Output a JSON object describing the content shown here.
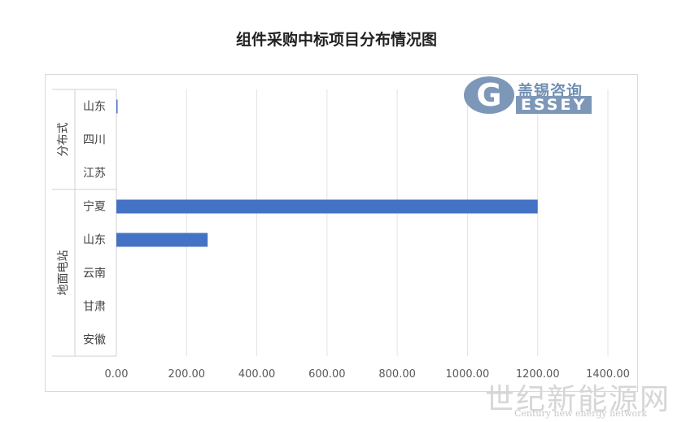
{
  "title": "组件采购中标项目分布情况图",
  "logo": {
    "cn": "盖锡咨询",
    "en": "ESSEY",
    "g": "G"
  },
  "watermark": {
    "cn": "世纪新能源网",
    "en": "Century new energy network"
  },
  "chart_data": {
    "type": "bar",
    "orientation": "horizontal",
    "groups": [
      {
        "name": "分布式",
        "categories": [
          "山东",
          "四川",
          "江苏"
        ]
      },
      {
        "name": "地面电站",
        "categories": [
          "宁夏",
          "山东",
          "云南",
          "甘肃",
          "安徽"
        ]
      }
    ],
    "categories": [
      "山东",
      "四川",
      "江苏",
      "宁夏",
      "山东",
      "云南",
      "甘肃",
      "安徽"
    ],
    "values": [
      2,
      0,
      0,
      1200,
      260,
      0,
      0,
      0
    ],
    "xticks": [
      "0.00",
      "200.00",
      "400.00",
      "600.00",
      "800.00",
      "1000.00",
      "1200.00",
      "1400.00"
    ],
    "xlim": [
      0,
      1400
    ],
    "grid": true,
    "bar_color": "#4472c4"
  }
}
